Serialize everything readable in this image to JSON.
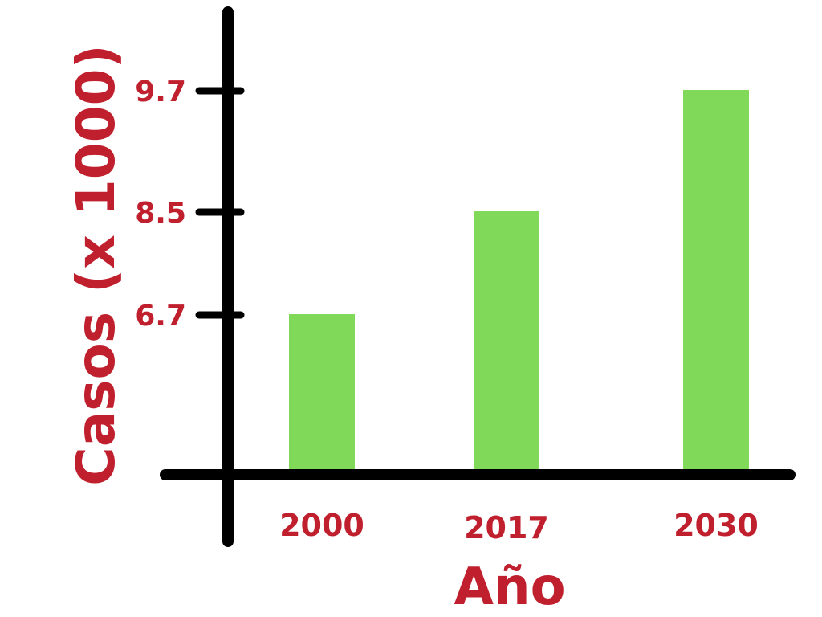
{
  "chart_data": {
    "type": "bar",
    "categories": [
      "2000",
      "2017",
      "2030"
    ],
    "values": [
      6.7,
      8.5,
      9.7
    ],
    "title": "",
    "xlabel": "Año",
    "ylabel": "Casos (x 1000)",
    "yticks": [
      6.7,
      8.5,
      9.7
    ],
    "yticks_labels": [
      "6.7",
      "8.5",
      "9.7"
    ],
    "grid": false,
    "legend": "none",
    "colors": {
      "bar": "#80d959",
      "text": "#c0202e",
      "axis": "#000000"
    }
  }
}
